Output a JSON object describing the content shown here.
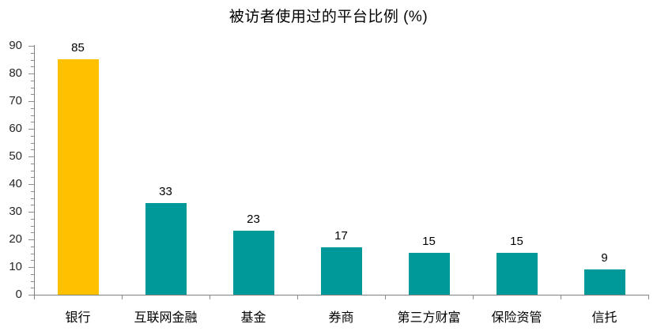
{
  "chart_data": {
    "type": "bar",
    "title": "被访者使用过的平台比例 (%)",
    "categories": [
      "银行",
      "互联网金融",
      "基金",
      "券商",
      "第三方财富",
      "保险资管",
      "信托"
    ],
    "values": [
      85,
      33,
      23,
      17,
      15,
      15,
      9
    ],
    "colors": [
      "#FFC000",
      "#009999",
      "#009999",
      "#009999",
      "#009999",
      "#009999",
      "#009999"
    ],
    "data_labels": [
      "85",
      "33",
      "23",
      "17",
      "15",
      "15",
      "9"
    ],
    "y_tick_labels": [
      "0",
      "10",
      "20",
      "30",
      "40",
      "50",
      "60",
      "70",
      "80",
      "90"
    ],
    "ylim": [
      0,
      90
    ],
    "y_major_step": 10,
    "y_minor_step": 2.5,
    "xlabel": "",
    "ylabel": "",
    "grid": false,
    "legend": "none",
    "axis_color": "#808080",
    "tick_color": "#8C8C8C",
    "label_color": "#262626",
    "title_color": "#000000",
    "highlight_color": "#FFC000",
    "bar_color": "#009999"
  }
}
